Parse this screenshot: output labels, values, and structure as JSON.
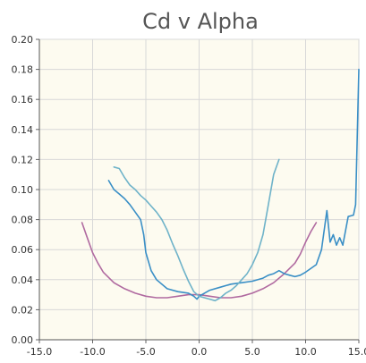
{
  "chart_data": {
    "type": "line",
    "title": "Cd v Alpha",
    "xlabel": "",
    "ylabel": "",
    "xlim": [
      -15.0,
      15.0
    ],
    "ylim": [
      0.0,
      0.2
    ],
    "x_ticks": [
      -15.0,
      -10.0,
      -5.0,
      0.0,
      5.0,
      10.0,
      15.0
    ],
    "x_tick_labels": [
      "-15.0",
      "-10.0",
      "-5.0",
      "0.0",
      "5.0",
      "10.0",
      "15.0"
    ],
    "y_ticks": [
      0.0,
      0.02,
      0.04,
      0.06,
      0.08,
      0.1,
      0.12,
      0.14,
      0.16,
      0.18,
      0.2
    ],
    "y_tick_labels": [
      "0.00",
      "0.02",
      "0.04",
      "0.06",
      "0.08",
      "0.10",
      "0.12",
      "0.14",
      "0.16",
      "0.18",
      "0.20"
    ],
    "grid": true,
    "background": "#fdfbf0",
    "series": [
      {
        "color": "#b06aa0",
        "x": [
          -11.0,
          -10.5,
          -10.0,
          -9.5,
          -9.0,
          -8.0,
          -7.0,
          -6.0,
          -5.0,
          -4.0,
          -3.0,
          -2.0,
          -1.0,
          0.0,
          1.0,
          2.0,
          3.0,
          4.0,
          5.0,
          6.0,
          7.0,
          8.0,
          9.0,
          9.5,
          10.0,
          10.5,
          11.0
        ],
        "y": [
          0.078,
          0.068,
          0.058,
          0.051,
          0.045,
          0.038,
          0.034,
          0.031,
          0.029,
          0.028,
          0.028,
          0.029,
          0.03,
          0.03,
          0.029,
          0.028,
          0.028,
          0.029,
          0.031,
          0.034,
          0.038,
          0.044,
          0.051,
          0.057,
          0.065,
          0.072,
          0.078
        ]
      },
      {
        "color": "#3a8fc6",
        "x": [
          -8.5,
          -8.0,
          -7.5,
          -7.0,
          -6.5,
          -6.0,
          -5.5,
          -5.2,
          -5.0,
          -4.5,
          -4.0,
          -3.0,
          -2.0,
          -1.0,
          -0.5,
          -0.2,
          0.0,
          0.5,
          1.0,
          2.0,
          3.0,
          4.0,
          5.0,
          6.0,
          6.5,
          7.0,
          7.5,
          8.0,
          8.5,
          9.0,
          9.5,
          10.0,
          11.0,
          11.5,
          12.0,
          12.3,
          12.6,
          12.9,
          13.2,
          13.5,
          14.0,
          14.5,
          14.7,
          15.0
        ],
        "y": [
          0.106,
          0.1,
          0.097,
          0.094,
          0.09,
          0.085,
          0.08,
          0.07,
          0.058,
          0.046,
          0.04,
          0.034,
          0.032,
          0.031,
          0.029,
          0.027,
          0.029,
          0.031,
          0.033,
          0.035,
          0.037,
          0.038,
          0.039,
          0.041,
          0.043,
          0.044,
          0.046,
          0.044,
          0.043,
          0.042,
          0.043,
          0.045,
          0.05,
          0.06,
          0.086,
          0.065,
          0.07,
          0.063,
          0.068,
          0.063,
          0.082,
          0.083,
          0.09,
          0.18
        ]
      },
      {
        "color": "#6fb3c9",
        "x": [
          -8.0,
          -7.5,
          -7.0,
          -6.5,
          -6.0,
          -5.5,
          -5.0,
          -4.5,
          -4.0,
          -3.5,
          -3.0,
          -2.5,
          -2.0,
          -1.5,
          -1.0,
          -0.5,
          0.0,
          0.5,
          1.0,
          1.5,
          2.0,
          2.5,
          3.0,
          3.5,
          4.0,
          4.5,
          5.0,
          5.5,
          6.0,
          6.5,
          7.0,
          7.5
        ],
        "y": [
          0.115,
          0.114,
          0.108,
          0.103,
          0.1,
          0.096,
          0.093,
          0.089,
          0.085,
          0.08,
          0.073,
          0.064,
          0.056,
          0.047,
          0.039,
          0.032,
          0.029,
          0.028,
          0.027,
          0.026,
          0.028,
          0.031,
          0.033,
          0.036,
          0.04,
          0.044,
          0.05,
          0.058,
          0.07,
          0.09,
          0.11,
          0.12
        ]
      }
    ]
  }
}
